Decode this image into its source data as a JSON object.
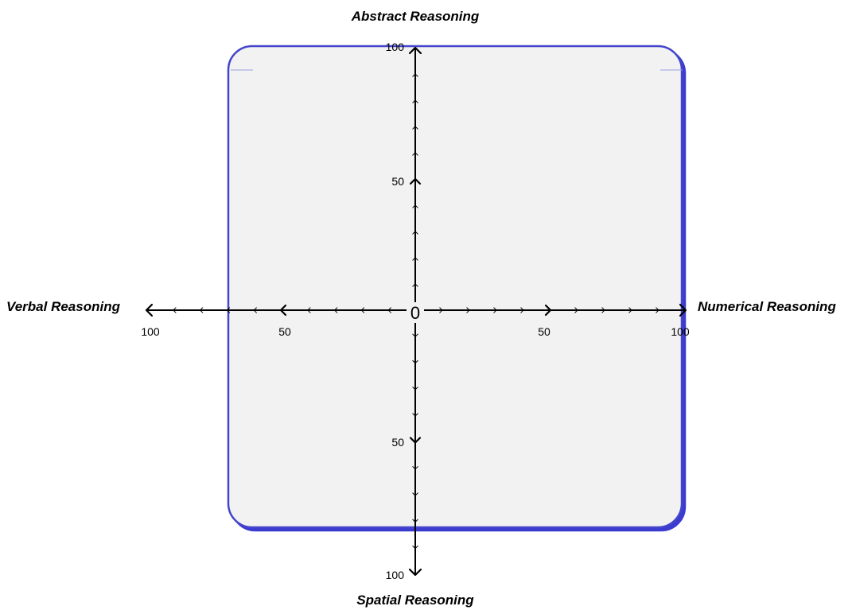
{
  "chart_data": {
    "type": "quadrant",
    "axes": {
      "top": {
        "title": "Abstract Reasoning",
        "ticks": [
          50,
          100
        ],
        "range": [
          0,
          100
        ]
      },
      "bottom": {
        "title": "Spatial Reasoning",
        "ticks": [
          50,
          100
        ],
        "range": [
          0,
          100
        ]
      },
      "left": {
        "title": "Verbal Reasoning",
        "ticks": [
          50,
          100
        ],
        "range": [
          0,
          100
        ]
      },
      "right": {
        "title": "Numerical Reasoning",
        "ticks": [
          50,
          100
        ],
        "range": [
          0,
          100
        ]
      }
    },
    "origin_label": "0",
    "minor_tick_interval": 10,
    "grid": false,
    "legend": "none"
  },
  "colors": {
    "panel_fill": "#f2f2f2",
    "panel_border": "#4444cc",
    "axis": "#000000",
    "text": "#000000"
  }
}
